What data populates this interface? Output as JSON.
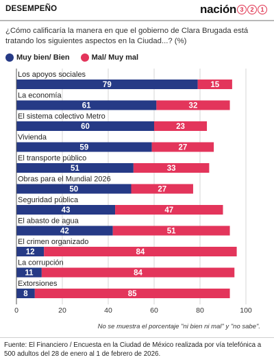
{
  "header": {
    "section_label": "DESEMPEÑO",
    "brand_word": "nación",
    "brand_digits": [
      "3",
      "2",
      "1"
    ]
  },
  "question": "¿Cómo calificaría la manera en que el gobierno de Clara Brugada está tratando los siguientes aspectos en la Ciudad...?  (%)",
  "legend": {
    "positive": "Muy bien/ Bien",
    "negative": "Mal/ Muy mal"
  },
  "colors": {
    "positive": "#263a86",
    "negative": "#e3355b",
    "grid": "#d6d6d6",
    "axis": "#555555"
  },
  "chart_data": {
    "type": "bar",
    "orientation": "horizontal",
    "stacked": true,
    "categories": [
      "Los apoyos sociales",
      "La economía",
      "El sistema colectivo Metro",
      "Vivienda",
      "El transporte público",
      "Obras para el Mundial 2026",
      "Seguridad pública",
      "El abasto de agua",
      "El crimen organizado",
      "La corrupción",
      "Extorsiones"
    ],
    "series": [
      {
        "name": "Muy bien/ Bien",
        "values": [
          79,
          61,
          60,
          59,
          51,
          50,
          43,
          42,
          12,
          11,
          8
        ]
      },
      {
        "name": "Mal/ Muy mal",
        "values": [
          15,
          32,
          23,
          27,
          33,
          27,
          47,
          51,
          84,
          84,
          85
        ]
      }
    ],
    "xlim": [
      0,
      100
    ],
    "xticks": [
      0,
      20,
      40,
      60,
      80,
      100
    ],
    "grid": true,
    "legend_position": "top-left"
  },
  "footnote": "No se muestra el porcentaje \"ni bien ni mal\" y \"no sabe\".",
  "source": "Fuente: El Financiero /  Encuesta en la Ciudad de México realizada por vía telefónica a 500 adultos del 28 de enero al 1 de febrero de 2026."
}
